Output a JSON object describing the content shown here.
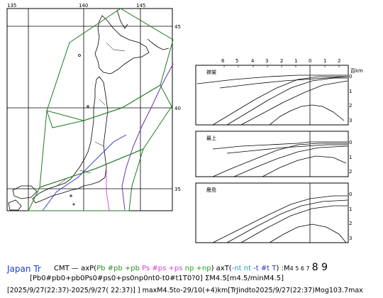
{
  "map": {
    "lon_ticks": [
      "135",
      "140",
      "145"
    ],
    "lat_ticks": [
      "45",
      "40",
      "35"
    ]
  },
  "sections": {
    "x_ticks": [
      "6",
      "5",
      "4",
      "3",
      "2",
      "1",
      "0",
      "1",
      "2"
    ],
    "unit": "百km",
    "panels": [
      {
        "label": "襟裳",
        "depth_ticks": [
          "0",
          "1",
          "2",
          "3"
        ]
      },
      {
        "label": "最上",
        "depth_ticks": [
          "0",
          "1",
          "2"
        ]
      },
      {
        "label": "鹿島",
        "depth_ticks": [
          "0",
          "1",
          "2",
          "3"
        ]
      }
    ]
  },
  "caption": {
    "title": "Japan Tr",
    "line1": {
      "cmt": "CMT — axP(",
      "pb": "Pb #pb +pb",
      "ps": "Ps #ps +ps",
      "np": "np +np",
      "axt": ") axT(",
      "nt": "-nt nt",
      "t": "-t #t T",
      "close": ")",
      "m": ":M",
      "mag_small": "4 5 6 7",
      "mag_big": "8 9"
    },
    "line2": "[Pb0#pb0+pb0Ps0#ps0+ps0np0nt0-t0#t1T0?0] ΣM4.5[m4.5/minM4.5]",
    "line3": "[2025/9/27(22:37)-2025/9/27( 22:37)] ] maxM4.5to-29/10(+4)km[TrJindto2025/9/27(22:37)Mog103.7max"
  },
  "colors": {
    "green": "#1f7a1f",
    "purple": "#6a2fb0",
    "blue": "#2b33c8",
    "magenta": "#d040d0",
    "title_blue": "#1a3fd0"
  }
}
